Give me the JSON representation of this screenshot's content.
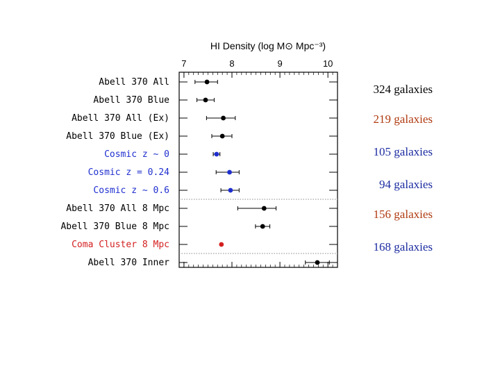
{
  "chart_data": {
    "type": "scatter",
    "title": "HI Density (log M⊙ Mpc⁻³)",
    "x_ticks": [
      "7",
      "8",
      "9",
      "10"
    ],
    "xlim": [
      6.9,
      10.2
    ],
    "colors": {
      "black": "#000000",
      "blue": "#1f2fcf",
      "red": "#d42020",
      "divider": "#888888"
    },
    "rows": [
      {
        "label": "Abell 370 All",
        "value": 7.48,
        "err_lo": 0.25,
        "err_hi": 0.22,
        "color": "black"
      },
      {
        "label": "Abell 370 Blue",
        "value": 7.45,
        "err_lo": 0.18,
        "err_hi": 0.18,
        "color": "black"
      },
      {
        "label": "Abell 370 All (Ex)",
        "value": 7.82,
        "err_lo": 0.35,
        "err_hi": 0.25,
        "color": "black"
      },
      {
        "label": "Abell 370 Blue (Ex)",
        "value": 7.8,
        "err_lo": 0.22,
        "err_hi": 0.2,
        "color": "black"
      },
      {
        "label": "Cosmic z ~ 0",
        "value": 7.68,
        "err_lo": 0.07,
        "err_hi": 0.07,
        "color": "blue"
      },
      {
        "label": "Cosmic z = 0.24",
        "value": 7.95,
        "err_lo": 0.28,
        "err_hi": 0.2,
        "color": "blue"
      },
      {
        "label": "Cosmic z ~ 0.6",
        "value": 7.97,
        "err_lo": 0.2,
        "err_hi": 0.18,
        "color": "blue"
      },
      {
        "label": "Abell 370 All 8 Mpc",
        "value": 8.67,
        "err_lo": 0.55,
        "err_hi": 0.25,
        "color": "black"
      },
      {
        "label": "Abell 370 Blue 8 Mpc",
        "value": 8.64,
        "err_lo": 0.15,
        "err_hi": 0.15,
        "color": "black"
      },
      {
        "label": "Coma Cluster 8 Mpc",
        "value": 7.78,
        "err_lo": 0,
        "err_hi": 0,
        "color": "red"
      },
      {
        "label": "Abell 370 Inner",
        "value": 9.78,
        "err_lo": 0.25,
        "err_hi": 0.25,
        "color": "black"
      }
    ],
    "divider_after_rows": [
      6,
      9
    ]
  },
  "annotations": [
    {
      "text": "324 galaxies",
      "row": 0,
      "color": "#000000"
    },
    {
      "text": "219 galaxies",
      "row": 2,
      "color": "#b03a10"
    },
    {
      "text": "105 galaxies",
      "row": 4,
      "color": "#1a2aa0"
    },
    {
      "text": "94 galaxies",
      "row": 6,
      "color": "#1a2aa0"
    },
    {
      "text": "156 galaxies",
      "row": 8,
      "color": "#b03a10"
    },
    {
      "text": "168 galaxies",
      "row": 9,
      "color": "#1a2aa0"
    }
  ]
}
